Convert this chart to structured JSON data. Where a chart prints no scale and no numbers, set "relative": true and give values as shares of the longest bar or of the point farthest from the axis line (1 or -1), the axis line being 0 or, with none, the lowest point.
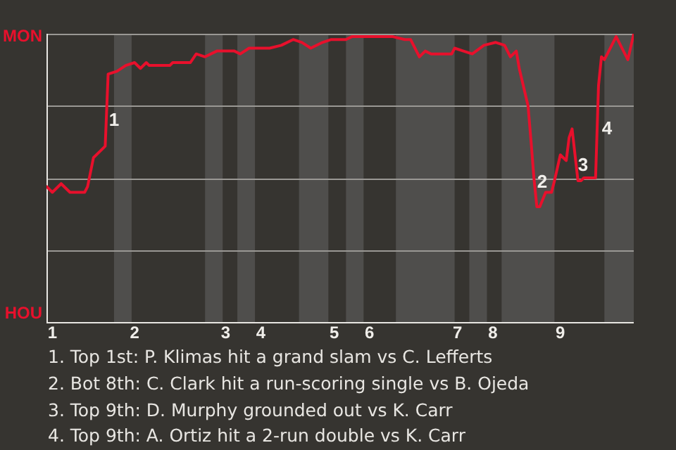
{
  "chart_data": {
    "type": "line",
    "relative": true,
    "categories": [
      null,
      null,
      "1",
      null,
      null,
      null,
      null,
      null,
      null,
      null,
      null,
      null,
      null,
      null,
      null,
      null,
      null,
      null,
      null,
      null,
      null,
      null,
      null,
      null,
      null,
      null,
      null,
      null,
      null,
      null,
      "2",
      null,
      null,
      null,
      null,
      null,
      null,
      null,
      null,
      null,
      null,
      null,
      null,
      null,
      null,
      null,
      null,
      null,
      null,
      null,
      null,
      null,
      null,
      null,
      null,
      null,
      null,
      null,
      null,
      null,
      null,
      "3",
      null,
      null,
      null,
      null,
      null,
      null,
      null,
      null,
      null,
      null,
      null,
      "4",
      null,
      null,
      null,
      null,
      null,
      null,
      null,
      null,
      null,
      null,
      null,
      null,
      null,
      null,
      null,
      null,
      null,
      null,
      null,
      null,
      null,
      null,
      null,
      null,
      "5",
      null,
      null,
      null,
      null,
      null,
      null,
      null,
      null,
      null,
      null,
      null,
      "6",
      null,
      null,
      null,
      null,
      null,
      null,
      null,
      null,
      null,
      null,
      null,
      null,
      null,
      null,
      null,
      null,
      null,
      null,
      null,
      null,
      null,
      null,
      null,
      null,
      null,
      null,
      null,
      null,
      null,
      "7",
      null,
      null,
      null,
      null,
      null,
      null,
      null,
      null,
      null,
      null,
      null,
      "8",
      null,
      null,
      null,
      null,
      null,
      null,
      null,
      null,
      null,
      null,
      null,
      null,
      null,
      null,
      null,
      null,
      null,
      null,
      null,
      null,
      null,
      null,
      "9",
      null,
      null,
      null,
      null,
      null,
      null,
      null,
      null,
      null,
      null,
      null,
      null,
      null,
      null,
      null,
      null,
      null,
      null,
      null,
      null,
      null,
      null,
      null,
      null,
      null
    ],
    "series": [
      {
        "color": "#e8102c",
        "values": [
          0.47,
          null,
          0.45,
          null,
          null,
          0.48,
          null,
          null,
          0.45,
          null,
          null,
          null,
          null,
          0.45,
          0.47,
          null,
          0.57,
          null,
          0.59,
          null,
          0.61,
          0.86,
          null,
          null,
          0.87,
          null,
          null,
          0.89,
          null,
          null,
          0.9,
          null,
          0.88,
          null,
          0.9,
          0.89,
          null,
          null,
          null,
          null,
          null,
          null,
          0.89,
          0.9,
          null,
          null,
          null,
          null,
          null,
          0.9,
          null,
          0.93,
          null,
          null,
          0.92,
          null,
          null,
          null,
          0.94,
          null,
          null,
          null,
          null,
          null,
          0.94,
          null,
          0.93,
          null,
          null,
          0.95,
          null,
          null,
          null,
          null,
          null,
          null,
          0.95,
          null,
          null,
          null,
          0.96,
          null,
          null,
          null,
          0.98,
          null,
          null,
          0.97,
          null,
          null,
          0.95,
          null,
          null,
          null,
          0.97,
          null,
          null,
          0.98,
          null,
          null,
          null,
          null,
          0.98,
          null,
          0.99,
          null,
          null,
          0.99,
          null,
          null,
          null,
          null,
          0.99,
          null,
          null,
          null,
          null,
          null,
          0.99,
          null,
          null,
          null,
          0.98,
          null,
          0.98,
          null,
          null,
          0.92,
          null,
          0.94,
          null,
          0.93,
          null,
          null,
          null,
          null,
          null,
          null,
          0.93,
          0.95,
          null,
          null,
          0.94,
          null,
          null,
          0.93,
          null,
          null,
          null,
          0.96,
          null,
          null,
          null,
          0.97,
          null,
          null,
          0.96,
          null,
          0.92,
          null,
          0.94,
          0.88,
          null,
          null,
          0.75,
          0.63,
          0.5,
          0.4,
          0.4,
          null,
          0.45,
          null,
          0.45,
          0.49,
          null,
          0.58,
          null,
          0.56,
          0.64,
          0.67,
          0.58,
          0.49,
          0.49,
          0.5,
          null,
          null,
          null,
          0.5,
          0.82,
          0.92,
          0.91,
          null,
          null,
          null,
          0.99,
          null,
          null,
          null,
          0.91,
          null,
          1.0
        ]
      }
    ],
    "ref_lines": [
      {
        "axis": "y",
        "value": 1,
        "color": "#9a9894"
      },
      {
        "axis": "y",
        "value": 0.75,
        "color": "#9a9894"
      },
      {
        "axis": "y",
        "value": 0.5,
        "color": "#9a9894"
      },
      {
        "axis": "y",
        "value": 0.25,
        "color": "#9a9894"
      }
    ],
    "legend": false,
    "marker": "none",
    "line_style": "solid",
    "annotations": [
      "MON",
      "HOU",
      "1",
      "2",
      "3",
      "4",
      "1. Top 1st: P. Klimas hit a grand slam vs C. Lefferts",
      "2. Bot 8th: C. Clark hit a run-scoring single vs B. Ojeda",
      "3. Top 9th: D. Murphy grounded out vs K. Carr",
      "4. Top 9th: A. Ortiz hit a 2-run double vs K. Carr"
    ]
  }
}
